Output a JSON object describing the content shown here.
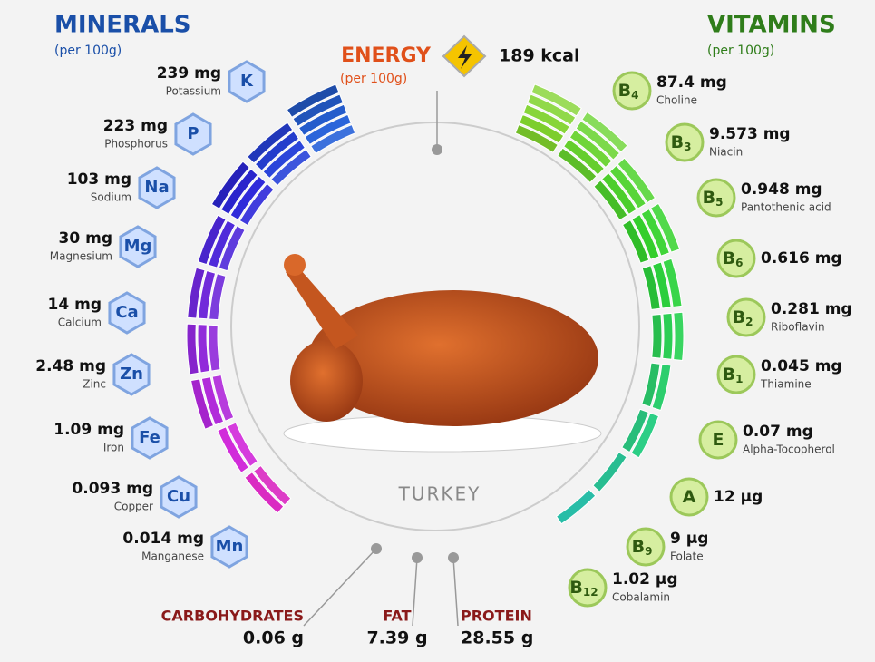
{
  "minerals": {
    "title": "MINERALS",
    "subtitle": "(per 100g)",
    "items": [
      {
        "symbol": "K",
        "amount": "239 mg",
        "name": "Potassium"
      },
      {
        "symbol": "P",
        "amount": "223 mg",
        "name": "Phosphorus"
      },
      {
        "symbol": "Na",
        "amount": "103 mg",
        "name": "Sodium"
      },
      {
        "symbol": "Mg",
        "amount": "30 mg",
        "name": "Magnesium"
      },
      {
        "symbol": "Ca",
        "amount": "14 mg",
        "name": "Calcium"
      },
      {
        "symbol": "Zn",
        "amount": "2.48 mg",
        "name": "Zinc"
      },
      {
        "symbol": "Fe",
        "amount": "1.09 mg",
        "name": "Iron"
      },
      {
        "symbol": "Cu",
        "amount": "0.093 mg",
        "name": "Copper"
      },
      {
        "symbol": "Mn",
        "amount": "0.014 mg",
        "name": "Manganese"
      }
    ]
  },
  "vitamins": {
    "title": "VITAMINS",
    "subtitle": "(per 100g)",
    "items": [
      {
        "letter": "B",
        "sub": "4",
        "amount": "87.4 mg",
        "name": "Choline"
      },
      {
        "letter": "B",
        "sub": "3",
        "amount": "9.573 mg",
        "name": "Niacin"
      },
      {
        "letter": "B",
        "sub": "5",
        "amount": "0.948 mg",
        "name": "Pantothenic acid"
      },
      {
        "letter": "B",
        "sub": "6",
        "amount": "0.616 mg"
      },
      {
        "letter": "B",
        "sub": "2",
        "amount": "0.281 mg",
        "name": "Riboflavin"
      },
      {
        "letter": "B",
        "sub": "1",
        "amount": "0.045 mg",
        "name": "Thiamine"
      },
      {
        "letter": "E",
        "amount": "0.07 mg",
        "name": "Alpha-Tocopherol"
      },
      {
        "letter": "A",
        "amount": "12 µg"
      },
      {
        "letter": "B",
        "sub": "9",
        "amount": "9 µg",
        "name": "Folate"
      },
      {
        "letter": "B",
        "sub": "12",
        "amount": "1.02 µg",
        "name": "Cobalamin"
      }
    ]
  },
  "energy": {
    "label": "ENERGY",
    "subtitle": "(per 100g)",
    "amount": "189 kcal"
  },
  "product": "TURKEY",
  "macros": [
    {
      "label": "CARBOHYDRATES",
      "amount": "0.06 g"
    },
    {
      "label": "FAT",
      "amount": "7.39 g"
    },
    {
      "label": "PROTEIN",
      "amount": "28.55 g"
    }
  ]
}
